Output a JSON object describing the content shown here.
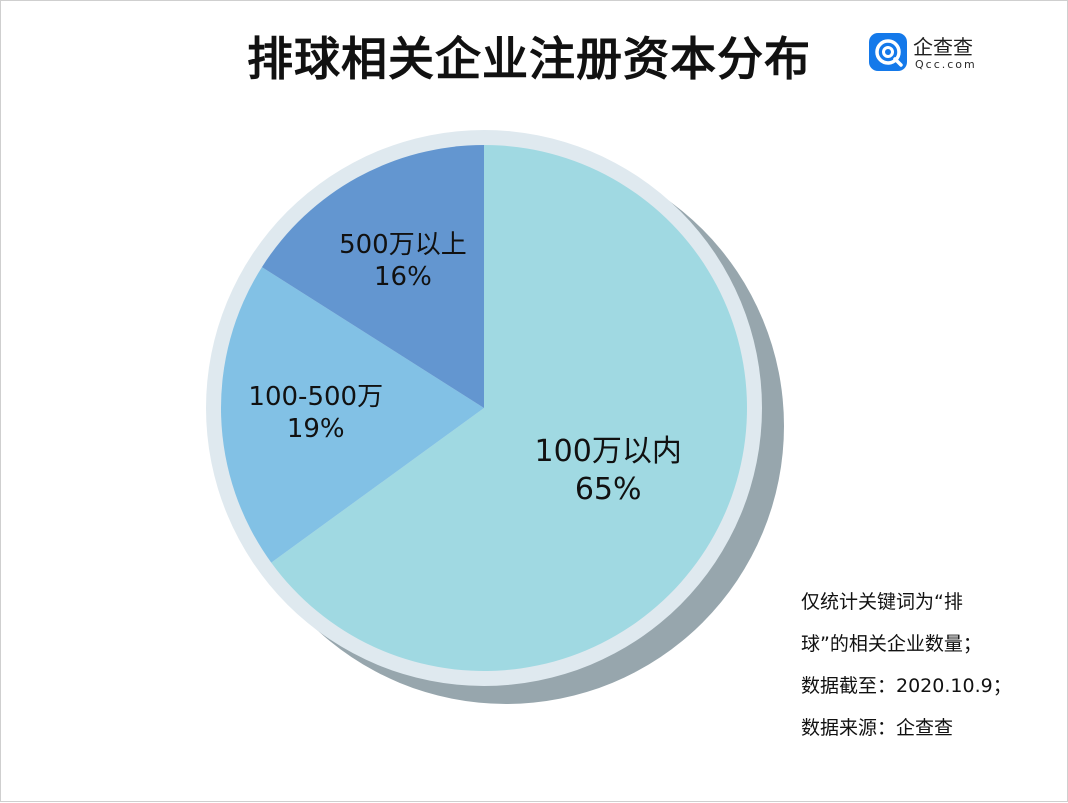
{
  "title": "排球相关企业注册资本分布",
  "logo": {
    "name_cn": "企查查",
    "name_en": "Qcc.com",
    "icon": "qcc-logo-icon",
    "color": "#1479ea"
  },
  "chart_data": {
    "type": "pie",
    "slices": [
      {
        "label": "100万以内",
        "value": 65,
        "value_label": "65%",
        "color": "#a0d9e2"
      },
      {
        "label": "100-500万",
        "value": 19,
        "value_label": "19%",
        "color": "#82c1e5"
      },
      {
        "label": "500万以上",
        "value": 16,
        "value_label": "16%",
        "color": "#6396d0"
      }
    ],
    "start": "12 o'clock",
    "direction": "clockwise",
    "ring_color": "#dfe9ef",
    "shadow_color": "#97a6ad"
  },
  "notes": [
    "仅统计关键词为“排",
    "球”的相关企业数量；",
    "数据截至：2020.10.9；",
    "数据来源：企查查"
  ]
}
